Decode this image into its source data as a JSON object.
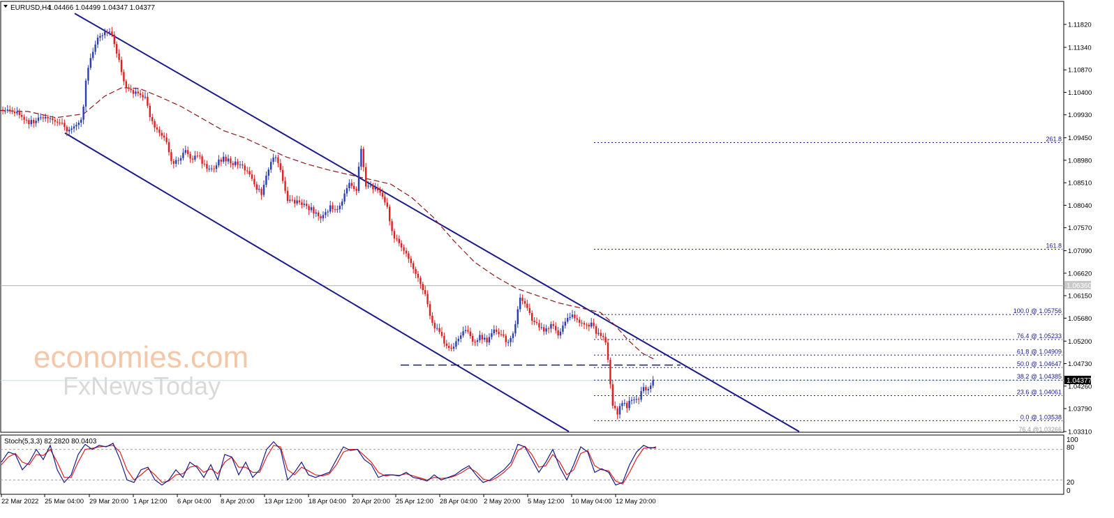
{
  "header": {
    "symbol": "EURUSD,H4",
    "ohlc": "1.04466 1.04499 1.04347 1.04377"
  },
  "stoch": {
    "label": "Stoch(5,3,3) 82.2820 80.0403",
    "levels": [
      "100",
      "80",
      "20",
      "0"
    ]
  },
  "price_axis": [
    "1.11820",
    "1.11340",
    "1.10870",
    "1.10400",
    "1.09930",
    "1.09450",
    "1.08980",
    "1.08510",
    "1.08040",
    "1.07570",
    "1.07090",
    "1.06620",
    "1.06150",
    "1.05680",
    "1.05200",
    "1.04730",
    "1.04260",
    "1.03790",
    "1.03310"
  ],
  "time_axis": [
    "22 Mar 2022",
    "25 Mar 04:00",
    "29 Mar 20:00",
    "1 Apr 12:00",
    "6 Apr 04:00",
    "8 Apr 20:00",
    "13 Apr 12:00",
    "18 Apr 04:00",
    "20 Apr 20:00",
    "25 Apr 12:00",
    "28 Apr 04:00",
    "2 May 20:00",
    "5 May 12:00",
    "10 May 04:00",
    "12 May 20:00"
  ],
  "markers": {
    "horizontal_line": "1.06360",
    "current_price": "1.04377"
  },
  "fib_labels": [
    "261.8",
    "161.8",
    "100.0 @ 1.05756",
    "76.4 @ 1.05233",
    "61.8 @ 1.04909",
    "50.0 @ 1.04647",
    "38.2 @ 1.04385",
    "23.6 @ 1.04061",
    "0.0 @ 1.03538",
    "76.4 @1.03266"
  ],
  "watermark": {
    "line1": "economies.com",
    "line2": "FxNewsToday"
  },
  "colors": {
    "bull": "#2a3db5",
    "bear": "#e0201f",
    "channel": "#1a1a8c",
    "ma": "#8b1a1a",
    "stoch_main": "#1a1a8c",
    "stoch_signal": "#e0201f"
  },
  "chart_data": {
    "type": "candlestick",
    "symbol": "EURUSD",
    "timeframe": "H4",
    "ylim": [
      1.0331,
      1.1182
    ],
    "close_path": [
      [
        0,
        1.1005
      ],
      [
        14,
        1.0998
      ],
      [
        28,
        1.0993
      ],
      [
        42,
        1.0978
      ],
      [
        56,
        1.0983
      ],
      [
        70,
        1.0992
      ],
      [
        84,
        1.0976
      ],
      [
        98,
        1.0962
      ],
      [
        110,
        1.0975
      ],
      [
        118,
        1.099
      ],
      [
        124,
        1.1085
      ],
      [
        132,
        1.1115
      ],
      [
        140,
        1.1155
      ],
      [
        148,
        1.1165
      ],
      [
        156,
        1.117
      ],
      [
        162,
        1.115
      ],
      [
        168,
        1.112
      ],
      [
        176,
        1.107
      ],
      [
        184,
        1.1045
      ],
      [
        192,
        1.104
      ],
      [
        200,
        1.1035
      ],
      [
        208,
        1.1025
      ],
      [
        216,
        1.0985
      ],
      [
        226,
        1.096
      ],
      [
        236,
        1.0945
      ],
      [
        246,
        1.0895
      ],
      [
        256,
        1.09
      ],
      [
        266,
        1.0915
      ],
      [
        276,
        1.09
      ],
      [
        286,
        1.0905
      ],
      [
        296,
        1.088
      ],
      [
        306,
        1.088
      ],
      [
        316,
        1.09
      ],
      [
        326,
        1.09
      ],
      [
        336,
        1.089
      ],
      [
        346,
        1.089
      ],
      [
        356,
        1.087
      ],
      [
        366,
        1.084
      ],
      [
        376,
        1.083
      ],
      [
        386,
        1.089
      ],
      [
        396,
        1.091
      ],
      [
        404,
        1.086
      ],
      [
        412,
        1.081
      ],
      [
        422,
        1.081
      ],
      [
        432,
        1.0805
      ],
      [
        442,
        1.08
      ],
      [
        452,
        1.079
      ],
      [
        462,
        1.078
      ],
      [
        472,
        1.08
      ],
      [
        482,
        1.079
      ],
      [
        492,
        1.082
      ],
      [
        500,
        1.085
      ],
      [
        510,
        1.083
      ],
      [
        518,
        1.093
      ],
      [
        524,
        1.084
      ],
      [
        534,
        1.084
      ],
      [
        544,
        1.083
      ],
      [
        554,
        1.08
      ],
      [
        564,
        1.074
      ],
      [
        574,
        1.072
      ],
      [
        584,
        1.07
      ],
      [
        594,
        1.067
      ],
      [
        604,
        1.064
      ],
      [
        612,
        1.06
      ],
      [
        618,
        1.056
      ],
      [
        628,
        1.054
      ],
      [
        638,
        1.051
      ],
      [
        648,
        1.05
      ],
      [
        658,
        1.053
      ],
      [
        668,
        1.054
      ],
      [
        678,
        1.052
      ],
      [
        688,
        1.053
      ],
      [
        698,
        1.052
      ],
      [
        708,
        1.054
      ],
      [
        718,
        1.053
      ],
      [
        728,
        1.052
      ],
      [
        738,
        1.055
      ],
      [
        744,
        1.061
      ],
      [
        752,
        1.06
      ],
      [
        760,
        1.057
      ],
      [
        770,
        1.055
      ],
      [
        780,
        1.054
      ],
      [
        790,
        1.056
      ],
      [
        800,
        1.053
      ],
      [
        810,
        1.056
      ],
      [
        820,
        1.057
      ],
      [
        830,
        1.056
      ],
      [
        840,
        1.056
      ],
      [
        850,
        1.055
      ],
      [
        858,
        1.053
      ],
      [
        866,
        1.053
      ],
      [
        872,
        1.047
      ],
      [
        878,
        1.038
      ],
      [
        884,
        1.037
      ],
      [
        890,
        1.0395
      ],
      [
        898,
        1.0385
      ],
      [
        906,
        1.04
      ],
      [
        914,
        1.04
      ],
      [
        922,
        1.042
      ],
      [
        930,
        1.0425
      ],
      [
        938,
        1.0438
      ]
    ],
    "ma_path": [
      [
        0,
        1.1002
      ],
      [
        40,
        1.1
      ],
      [
        80,
        1.0987
      ],
      [
        120,
        1.0995
      ],
      [
        150,
        1.1032
      ],
      [
        175,
        1.105
      ],
      [
        200,
        1.1048
      ],
      [
        230,
        1.103
      ],
      [
        260,
        1.101
      ],
      [
        290,
        1.0985
      ],
      [
        320,
        1.096
      ],
      [
        350,
        1.0945
      ],
      [
        380,
        1.0925
      ],
      [
        410,
        1.0905
      ],
      [
        440,
        1.089
      ],
      [
        470,
        1.0878
      ],
      [
        500,
        1.0868
      ],
      [
        530,
        1.0858
      ],
      [
        560,
        1.0848
      ],
      [
        590,
        1.082
      ],
      [
        620,
        1.078
      ],
      [
        650,
        1.073
      ],
      [
        680,
        1.0685
      ],
      [
        710,
        1.0655
      ],
      [
        740,
        1.063
      ],
      [
        770,
        1.0615
      ],
      [
        800,
        1.06
      ],
      [
        830,
        1.059
      ],
      [
        860,
        1.058
      ],
      [
        880,
        1.0555
      ],
      [
        900,
        1.0522
      ],
      [
        920,
        1.0495
      ],
      [
        940,
        1.048
      ]
    ],
    "channel": {
      "upper": [
        [
          107,
          1.1205
        ],
        [
          1145,
          1.0331
        ]
      ],
      "lower": [
        [
          93,
          1.0955
        ],
        [
          815,
          1.0331
        ]
      ]
    },
    "support_line": 1.047,
    "horizontal_line": 1.0636,
    "fib_levels": [
      {
        "label": "261.8",
        "value": 1.0935
      },
      {
        "label": "161.8",
        "value": 1.0712
      },
      {
        "label": "100.0",
        "value": 1.05756
      },
      {
        "label": "76.4",
        "value": 1.05233
      },
      {
        "label": "61.8",
        "value": 1.04909
      },
      {
        "label": "50.0",
        "value": 1.04647
      },
      {
        "label": "38.2",
        "value": 1.04385
      },
      {
        "label": "23.6",
        "value": 1.04061
      },
      {
        "label": "0.0",
        "value": 1.03538
      }
    ],
    "stochastic": {
      "params": "5,3,3",
      "k": 82.282,
      "d": 80.0403,
      "ylim": [
        0,
        100
      ],
      "levels": [
        80,
        20
      ],
      "k_path": [
        [
          0,
          55
        ],
        [
          10,
          75
        ],
        [
          20,
          70
        ],
        [
          30,
          40
        ],
        [
          40,
          55
        ],
        [
          50,
          80
        ],
        [
          60,
          60
        ],
        [
          70,
          88
        ],
        [
          80,
          40
        ],
        [
          90,
          15
        ],
        [
          100,
          30
        ],
        [
          110,
          70
        ],
        [
          120,
          90
        ],
        [
          130,
          80
        ],
        [
          140,
          88
        ],
        [
          150,
          85
        ],
        [
          160,
          92
        ],
        [
          170,
          60
        ],
        [
          180,
          20
        ],
        [
          190,
          15
        ],
        [
          200,
          40
        ],
        [
          210,
          45
        ],
        [
          220,
          20
        ],
        [
          230,
          10
        ],
        [
          240,
          20
        ],
        [
          250,
          40
        ],
        [
          260,
          25
        ],
        [
          270,
          55
        ],
        [
          280,
          45
        ],
        [
          290,
          25
        ],
        [
          300,
          50
        ],
        [
          310,
          20
        ],
        [
          320,
          70
        ],
        [
          330,
          65
        ],
        [
          340,
          30
        ],
        [
          350,
          55
        ],
        [
          360,
          25
        ],
        [
          370,
          40
        ],
        [
          380,
          80
        ],
        [
          390,
          95
        ],
        [
          400,
          80
        ],
        [
          410,
          20
        ],
        [
          420,
          35
        ],
        [
          430,
          55
        ],
        [
          440,
          30
        ],
        [
          450,
          25
        ],
        [
          460,
          30
        ],
        [
          470,
          35
        ],
        [
          480,
          60
        ],
        [
          490,
          85
        ],
        [
          500,
          78
        ],
        [
          510,
          80
        ],
        [
          520,
          60
        ],
        [
          530,
          50
        ],
        [
          540,
          25
        ],
        [
          550,
          30
        ],
        [
          560,
          30
        ],
        [
          570,
          28
        ],
        [
          580,
          35
        ],
        [
          590,
          25
        ],
        [
          600,
          22
        ],
        [
          610,
          18
        ],
        [
          620,
          30
        ],
        [
          630,
          20
        ],
        [
          640,
          25
        ],
        [
          650,
          30
        ],
        [
          660,
          40
        ],
        [
          670,
          48
        ],
        [
          680,
          30
        ],
        [
          690,
          15
        ],
        [
          700,
          20
        ],
        [
          710,
          30
        ],
        [
          720,
          40
        ],
        [
          730,
          55
        ],
        [
          740,
          90
        ],
        [
          750,
          85
        ],
        [
          760,
          60
        ],
        [
          770,
          35
        ],
        [
          780,
          55
        ],
        [
          790,
          80
        ],
        [
          800,
          45
        ],
        [
          810,
          20
        ],
        [
          820,
          50
        ],
        [
          830,
          85
        ],
        [
          840,
          75
        ],
        [
          850,
          35
        ],
        [
          860,
          42
        ],
        [
          870,
          35
        ],
        [
          880,
          10
        ],
        [
          890,
          15
        ],
        [
          900,
          50
        ],
        [
          910,
          75
        ],
        [
          920,
          88
        ],
        [
          930,
          82
        ],
        [
          938,
          85
        ]
      ],
      "d_path": [
        [
          0,
          50
        ],
        [
          10,
          65
        ],
        [
          20,
          72
        ],
        [
          30,
          55
        ],
        [
          40,
          50
        ],
        [
          50,
          70
        ],
        [
          60,
          68
        ],
        [
          70,
          80
        ],
        [
          80,
          55
        ],
        [
          90,
          25
        ],
        [
          100,
          25
        ],
        [
          110,
          55
        ],
        [
          120,
          80
        ],
        [
          130,
          82
        ],
        [
          140,
          85
        ],
        [
          150,
          86
        ],
        [
          160,
          88
        ],
        [
          170,
          75
        ],
        [
          180,
          40
        ],
        [
          190,
          20
        ],
        [
          200,
          30
        ],
        [
          210,
          42
        ],
        [
          220,
          30
        ],
        [
          230,
          15
        ],
        [
          240,
          18
        ],
        [
          250,
          30
        ],
        [
          260,
          32
        ],
        [
          270,
          45
        ],
        [
          280,
          48
        ],
        [
          290,
          35
        ],
        [
          300,
          42
        ],
        [
          310,
          32
        ],
        [
          320,
          55
        ],
        [
          330,
          65
        ],
        [
          340,
          45
        ],
        [
          350,
          45
        ],
        [
          360,
          35
        ],
        [
          370,
          35
        ],
        [
          380,
          65
        ],
        [
          390,
          88
        ],
        [
          400,
          85
        ],
        [
          410,
          40
        ],
        [
          420,
          30
        ],
        [
          430,
          45
        ],
        [
          440,
          38
        ],
        [
          450,
          30
        ],
        [
          460,
          28
        ],
        [
          470,
          32
        ],
        [
          480,
          50
        ],
        [
          490,
          75
        ],
        [
          500,
          80
        ],
        [
          510,
          80
        ],
        [
          520,
          68
        ],
        [
          530,
          55
        ],
        [
          540,
          35
        ],
        [
          550,
          28
        ],
        [
          560,
          30
        ],
        [
          570,
          29
        ],
        [
          580,
          32
        ],
        [
          590,
          28
        ],
        [
          600,
          24
        ],
        [
          610,
          20
        ],
        [
          620,
          25
        ],
        [
          630,
          23
        ],
        [
          640,
          24
        ],
        [
          650,
          28
        ],
        [
          660,
          35
        ],
        [
          670,
          44
        ],
        [
          680,
          36
        ],
        [
          690,
          22
        ],
        [
          700,
          18
        ],
        [
          710,
          25
        ],
        [
          720,
          35
        ],
        [
          730,
          48
        ],
        [
          740,
          78
        ],
        [
          750,
          86
        ],
        [
          760,
          70
        ],
        [
          770,
          45
        ],
        [
          780,
          48
        ],
        [
          790,
          70
        ],
        [
          800,
          55
        ],
        [
          810,
          30
        ],
        [
          820,
          40
        ],
        [
          830,
          72
        ],
        [
          840,
          78
        ],
        [
          850,
          48
        ],
        [
          860,
          40
        ],
        [
          870,
          38
        ],
        [
          880,
          18
        ],
        [
          890,
          12
        ],
        [
          900,
          35
        ],
        [
          910,
          62
        ],
        [
          920,
          82
        ],
        [
          930,
          84
        ],
        [
          938,
          82
        ]
      ]
    }
  }
}
